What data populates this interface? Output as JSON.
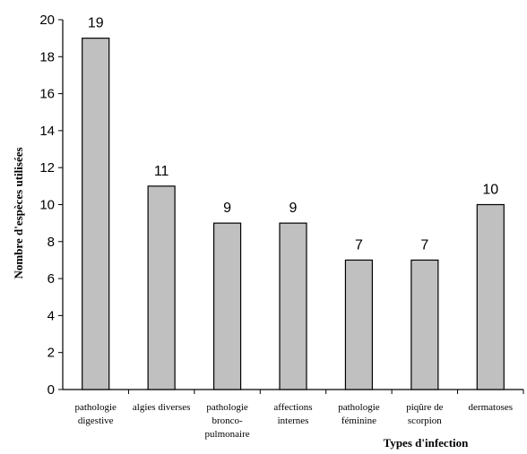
{
  "chart_data": {
    "type": "bar",
    "title": "",
    "xlabel": "Types d'infection",
    "ylabel": "Nombre d'espèces utilisées",
    "ylim": [
      0,
      20
    ],
    "yticks": [
      0,
      2,
      4,
      6,
      8,
      10,
      12,
      14,
      16,
      18,
      20
    ],
    "categories": [
      [
        "pathologie",
        "digestive"
      ],
      [
        "algies diverses"
      ],
      [
        "pathologie",
        "bronco-",
        "pulmonaire"
      ],
      [
        "affections",
        "internes"
      ],
      [
        "pathologie",
        "féminine"
      ],
      [
        "piqûre de",
        "scorpion"
      ],
      [
        "dermatoses"
      ]
    ],
    "values": [
      19,
      11,
      9,
      9,
      7,
      7,
      10
    ],
    "data_labels": [
      "19",
      "11",
      "9",
      "9",
      "7",
      "7",
      "10"
    ],
    "bar_color": "#c0c0c0",
    "grid": false,
    "legend": "none"
  }
}
